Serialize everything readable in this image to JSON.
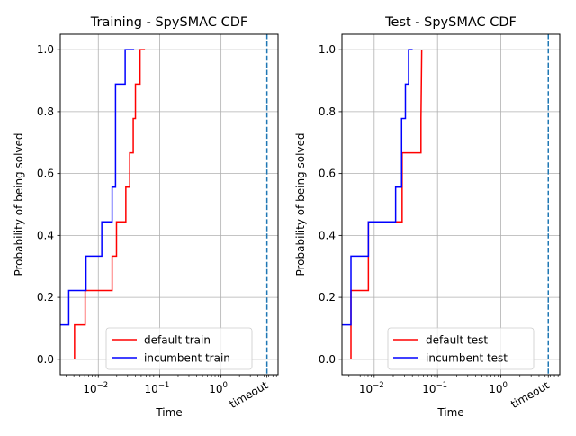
{
  "chart_data": [
    {
      "type": "line",
      "title": "Training - SpySMAC CDF",
      "xlabel": "Time",
      "ylabel": "Probability of being solved",
      "xscale": "log",
      "xlim": [
        0.0024,
        8.5
      ],
      "ylim": [
        -0.05,
        1.05
      ],
      "xticks": [
        {
          "value": 0.01,
          "label": "10",
          "exp": "−2"
        },
        {
          "value": 0.1,
          "label": "10",
          "exp": "−1"
        },
        {
          "value": 1,
          "label": "10",
          "exp": "0"
        }
      ],
      "yticks": [
        {
          "value": 0,
          "label": "0.0"
        },
        {
          "value": 0.2,
          "label": "0.2"
        },
        {
          "value": 0.4,
          "label": "0.4"
        },
        {
          "value": 0.6,
          "label": "0.6"
        },
        {
          "value": 0.8,
          "label": "0.8"
        },
        {
          "value": 1,
          "label": "1.0"
        }
      ],
      "grid": true,
      "timeout": {
        "value": 5.6,
        "label": "timeout",
        "color": "#1f77b4"
      },
      "legend_position": "lower-center",
      "series": [
        {
          "name": "default train",
          "color": "#ff0000",
          "x": [
            0.0041,
            0.0041,
            0.0061,
            0.0061,
            0.0168,
            0.0168,
            0.0198,
            0.0198,
            0.0281,
            0.0281,
            0.0325,
            0.0325,
            0.0371,
            0.0371,
            0.0403,
            0.0403,
            0.0479,
            0.0479,
            0.0576
          ],
          "y": [
            0,
            0.111,
            0.111,
            0.222,
            0.222,
            0.333,
            0.333,
            0.444,
            0.444,
            0.556,
            0.556,
            0.667,
            0.667,
            0.778,
            0.778,
            0.889,
            0.889,
            1.0,
            1.0
          ]
        },
        {
          "name": "incumbent train",
          "color": "#0000ff",
          "x": [
            0.0024,
            0.0033,
            0.0033,
            0.0063,
            0.0063,
            0.0114,
            0.0114,
            0.0168,
            0.0168,
            0.0191,
            0.0191,
            0.0274,
            0.0274,
            0.0384
          ],
          "y": [
            0.111,
            0.111,
            0.222,
            0.222,
            0.333,
            0.333,
            0.444,
            0.444,
            0.556,
            0.556,
            0.889,
            0.889,
            1.0,
            1.0
          ]
        }
      ]
    },
    {
      "type": "line",
      "title": "Test - SpySMAC CDF",
      "xlabel": "Time",
      "ylabel": "Probability of being solved",
      "xscale": "log",
      "xlim": [
        0.0031,
        8.5
      ],
      "ylim": [
        -0.05,
        1.05
      ],
      "xticks": [
        {
          "value": 0.01,
          "label": "10",
          "exp": "−2"
        },
        {
          "value": 0.1,
          "label": "10",
          "exp": "−1"
        },
        {
          "value": 1,
          "label": "10",
          "exp": "0"
        }
      ],
      "yticks": [
        {
          "value": 0,
          "label": "0.0"
        },
        {
          "value": 0.2,
          "label": "0.2"
        },
        {
          "value": 0.4,
          "label": "0.4"
        },
        {
          "value": 0.6,
          "label": "0.6"
        },
        {
          "value": 0.8,
          "label": "0.8"
        },
        {
          "value": 1,
          "label": "1.0"
        }
      ],
      "grid": true,
      "timeout": {
        "value": 5.6,
        "label": "timeout",
        "color": "#1f77b4"
      },
      "legend_position": "lower-center",
      "series": [
        {
          "name": "default test",
          "color": "#ff0000",
          "x": [
            0.0043,
            0.0043,
            0.0081,
            0.0081,
            0.0276,
            0.0276,
            0.0548,
            0.0548,
            0.0563
          ],
          "y": [
            0,
            0.222,
            0.222,
            0.444,
            0.444,
            0.667,
            0.667,
            0.778,
            1.0
          ]
        },
        {
          "name": "incumbent test",
          "color": "#0000ff",
          "x": [
            0.0031,
            0.0043,
            0.0043,
            0.0081,
            0.0081,
            0.0218,
            0.0218,
            0.0271,
            0.0271,
            0.0311,
            0.0311,
            0.0349,
            0.0349,
            0.0395,
            0.0395,
            0.0405
          ],
          "y": [
            0.111,
            0.111,
            0.333,
            0.333,
            0.444,
            0.444,
            0.556,
            0.556,
            0.778,
            0.778,
            0.889,
            0.889,
            1.0,
            1.0,
            1.0,
            1.0
          ]
        }
      ]
    }
  ]
}
